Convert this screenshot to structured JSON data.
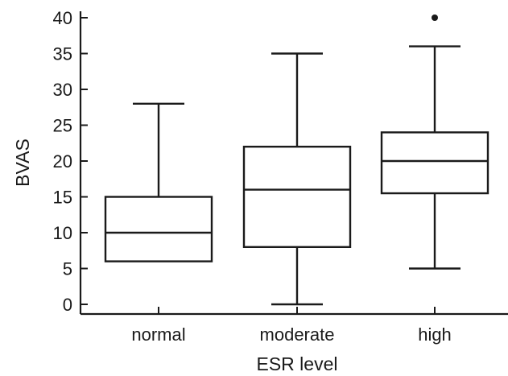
{
  "chart_data": {
    "type": "box",
    "xlabel": "ESR level",
    "ylabel": "BVAS",
    "categories": [
      "normal",
      "moderate",
      "high"
    ],
    "ylim": [
      -1,
      41
    ],
    "yticks": [
      0,
      5,
      10,
      15,
      20,
      25,
      30,
      35,
      40
    ],
    "grid": false,
    "boxes": [
      {
        "category": "normal",
        "whisker_low": 6,
        "q1": 6,
        "median": 10,
        "q3": 15,
        "whisker_high": 28,
        "outliers": []
      },
      {
        "category": "moderate",
        "whisker_low": 0,
        "q1": 8,
        "median": 16,
        "q3": 22,
        "whisker_high": 35,
        "outliers": []
      },
      {
        "category": "high",
        "whisker_low": 5,
        "q1": 15.5,
        "median": 20,
        "q3": 24,
        "whisker_high": 36,
        "outliers": [
          40
        ]
      }
    ],
    "colors": {
      "ink": "#1a1a1a",
      "background": "#ffffff"
    }
  }
}
